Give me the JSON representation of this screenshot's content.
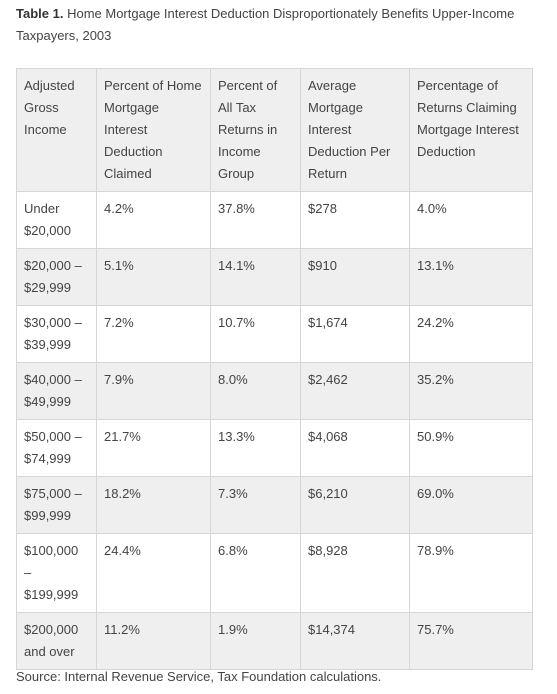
{
  "caption": {
    "label": "Table 1.",
    "text": "Home Mortgage Interest Deduction Disproportionately Benefits Upper-Income Taxpayers, 2003"
  },
  "table": {
    "header": [
      "Adjusted Gross Income",
      "Percent of Home Mortgage Interest Deduction Claimed",
      "Percent of All Tax Returns in Income Group",
      "Average Mortgage Interest Deduction Per Return",
      "Percentage of Returns Claiming Mortgage Interest Deduction"
    ],
    "rows": [
      [
        "Under $20,000",
        "4.2%",
        "37.8%",
        "$278",
        "4.0%"
      ],
      [
        "$20,000 – $29,999",
        "5.1%",
        "14.1%",
        "$910",
        "13.1%"
      ],
      [
        "$30,000 – $39,999",
        "7.2%",
        "10.7%",
        "$1,674",
        "24.2%"
      ],
      [
        "$40,000 – $49,999",
        "7.9%",
        "8.0%",
        "$2,462",
        "35.2%"
      ],
      [
        "$50,000 – $74,999",
        "21.7%",
        "13.3%",
        "$4,068",
        "50.9%"
      ],
      [
        "$75,000 – $99,999",
        "18.2%",
        "7.3%",
        "$6,210",
        "69.0%"
      ],
      [
        "$100,000 – $199,999",
        "24.4%",
        "6.8%",
        "$8,928",
        "78.9%"
      ],
      [
        "$200,000 and over",
        "11.2%",
        "1.9%",
        "$14,374",
        "75.7%"
      ]
    ]
  },
  "source": "Source: Internal Revenue Service, Tax Foundation calculations."
}
